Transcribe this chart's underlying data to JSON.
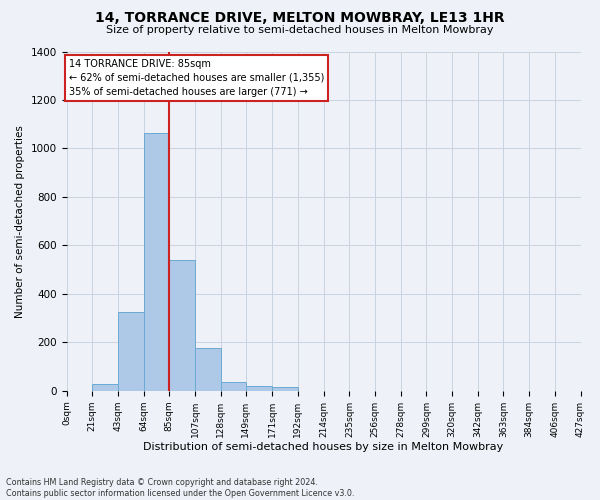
{
  "title": "14, TORRANCE DRIVE, MELTON MOWBRAY, LE13 1HR",
  "subtitle": "Size of property relative to semi-detached houses in Melton Mowbray",
  "xlabel": "Distribution of semi-detached houses by size in Melton Mowbray",
  "ylabel": "Number of semi-detached properties",
  "footer_line1": "Contains HM Land Registry data © Crown copyright and database right 2024.",
  "footer_line2": "Contains public sector information licensed under the Open Government Licence v3.0.",
  "annotation_title": "14 TORRANCE DRIVE: 85sqm",
  "annotation_line1": "← 62% of semi-detached houses are smaller (1,355)",
  "annotation_line2": "35% of semi-detached houses are larger (771) →",
  "property_size": 85,
  "bin_edges": [
    0,
    21,
    43,
    64,
    85,
    107,
    128,
    149,
    171,
    192,
    214,
    235,
    256,
    278,
    299,
    320,
    342,
    363,
    384,
    406,
    427
  ],
  "bar_values": [
    0,
    30,
    325,
    1065,
    540,
    178,
    38,
    20,
    15,
    0,
    0,
    0,
    0,
    0,
    0,
    0,
    0,
    0,
    0,
    0
  ],
  "bar_color": "#aec8e8",
  "bar_edge_color": "#6aaad4",
  "vline_color": "#cc2222",
  "grid_color": "#c8d4e0",
  "bg_color": "#eef2f8",
  "annotation_box_facecolor": "#ffffff",
  "annotation_box_edgecolor": "#cc2222",
  "ylim_max": 1400,
  "yticks": [
    0,
    200,
    400,
    600,
    800,
    1000,
    1200,
    1400
  ],
  "tick_labels": [
    "0sqm",
    "21sqm",
    "43sqm",
    "64sqm",
    "85sqm",
    "107sqm",
    "128sqm",
    "149sqm",
    "171sqm",
    "192sqm",
    "214sqm",
    "235sqm",
    "256sqm",
    "278sqm",
    "299sqm",
    "320sqm",
    "342sqm",
    "363sqm",
    "384sqm",
    "406sqm",
    "427sqm"
  ]
}
